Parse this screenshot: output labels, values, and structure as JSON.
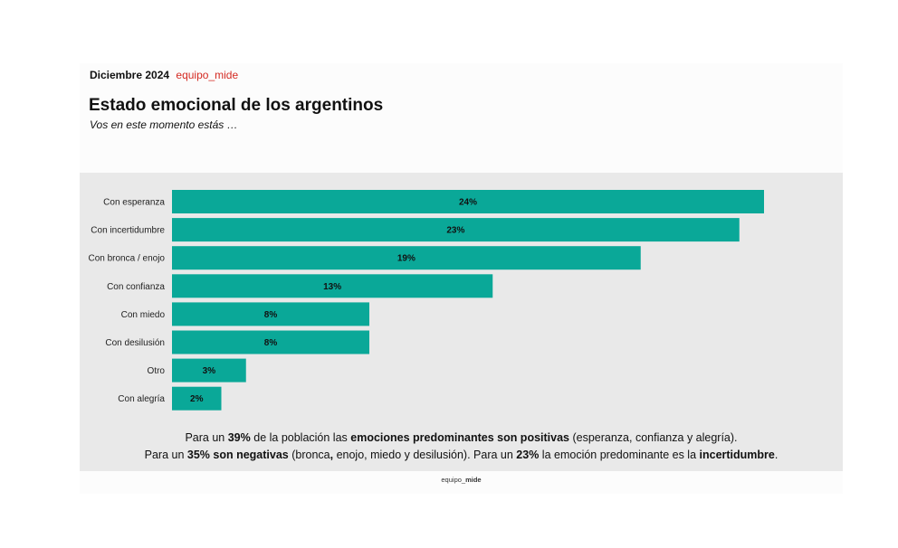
{
  "header": {
    "date": "Diciembre 2024",
    "brand": "equipo_mide",
    "title": "Estado emocional de los argentinos",
    "subtitle": "Vos en este momento estás …"
  },
  "colors": {
    "bar": "#0aa898",
    "panel": "#e9e9e9",
    "brand": "#d42a22"
  },
  "chart_data": {
    "type": "bar",
    "orientation": "horizontal",
    "title": "Estado emocional de los argentinos",
    "subtitle": "Vos en este momento estás …",
    "xlabel": "",
    "ylabel": "",
    "categories": [
      "Con esperanza",
      "Con incertidumbre",
      "Con bronca / enojo",
      "Con confianza",
      "Con miedo",
      "Con desilusión",
      "Otro",
      "Con alegría"
    ],
    "values": [
      24,
      23,
      19,
      13,
      8,
      8,
      3,
      2
    ],
    "value_labels": [
      "24%",
      "23%",
      "19%",
      "13%",
      "8%",
      "8%",
      "3%",
      "2%"
    ],
    "unit": "%",
    "xlim": [
      0,
      24
    ],
    "grid": false,
    "legend": "none"
  },
  "summary": {
    "line1": [
      {
        "t": "Para un ",
        "b": false
      },
      {
        "t": "39%",
        "b": true
      },
      {
        "t": " de la población las ",
        "b": false
      },
      {
        "t": "emociones predominantes son positivas",
        "b": true
      },
      {
        "t": " (esperanza, confianza y alegría).",
        "b": false
      }
    ],
    "line2": [
      {
        "t": "Para un ",
        "b": false
      },
      {
        "t": "35% son negativas",
        "b": true
      },
      {
        "t": " (bronca",
        "b": false
      },
      {
        "t": ",",
        "b": true
      },
      {
        "t": " enojo, miedo y desilusión). Para un ",
        "b": false
      },
      {
        "t": "23%",
        "b": true
      },
      {
        "t": " la emoción predominante es la ",
        "b": false
      },
      {
        "t": "incertidumbre",
        "b": true
      },
      {
        "t": ".",
        "b": false
      }
    ]
  },
  "footer": {
    "prefix": "equipo_",
    "bold": "mide"
  }
}
